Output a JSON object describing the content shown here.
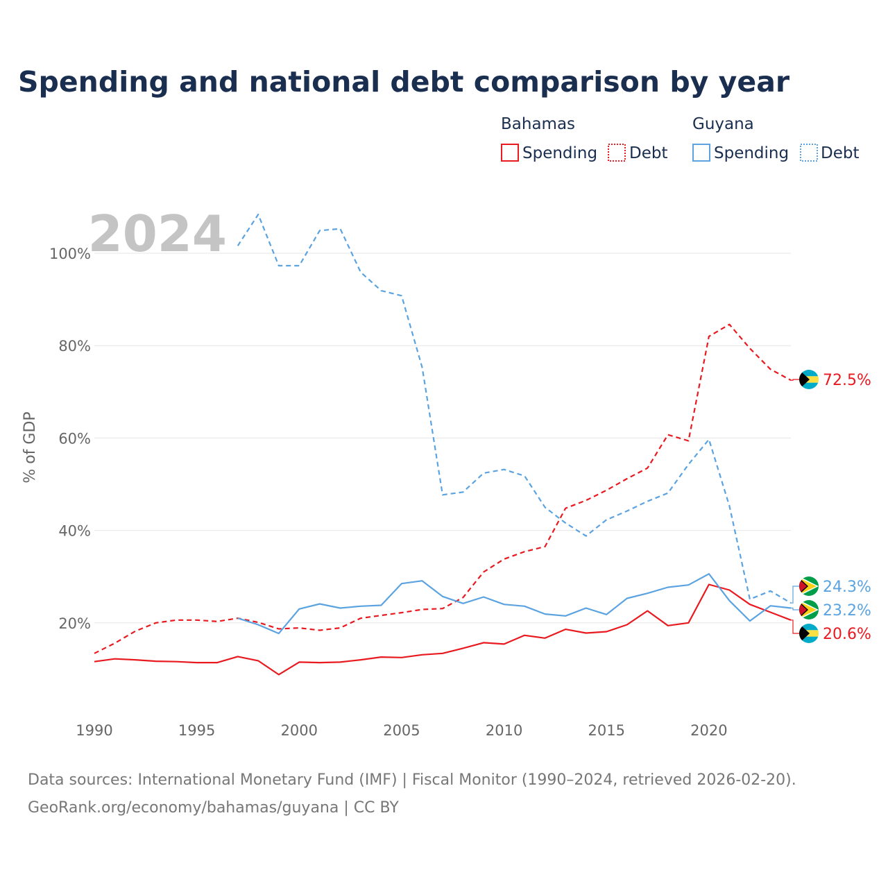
{
  "title": "Spending and national debt comparison by year",
  "legend": {
    "bahamas_label": "Bahamas",
    "guyana_label": "Guyana",
    "spending_label": "Spending",
    "debt_label": "Debt"
  },
  "current_year": "2024",
  "colors": {
    "bahamas": "#e8191f",
    "guyana": "#5ba3e0"
  },
  "footer": {
    "line1": "Data sources: International Monetary Fund (IMF) | Fiscal Monitor (1990–2024, retrieved 2026-02-20).",
    "line2": "GeoRank.org/economy/bahamas/guyana | CC BY"
  },
  "chart_data": {
    "type": "line",
    "title": "Spending and national debt comparison by year",
    "xlabel": "",
    "ylabel": "% of GDP",
    "xlim": [
      1990,
      2024
    ],
    "ylim": [
      0,
      110
    ],
    "x_ticks": [
      1990,
      1995,
      2000,
      2005,
      2010,
      2015,
      2020
    ],
    "y_ticks": [
      20,
      40,
      60,
      80,
      100
    ],
    "y_tick_labels": [
      "20%",
      "40%",
      "60%",
      "80%",
      "100%"
    ],
    "grid": true,
    "series": [
      {
        "name": "Bahamas Spending",
        "country": "Bahamas",
        "style": "solid",
        "color": "#e8191f",
        "end_label": "20.6%",
        "x": [
          1990,
          1991,
          1992,
          1993,
          1994,
          1995,
          1996,
          1997,
          1998,
          1999,
          2000,
          2001,
          2002,
          2003,
          2004,
          2005,
          2006,
          2007,
          2008,
          2009,
          2010,
          2011,
          2012,
          2013,
          2014,
          2015,
          2016,
          2017,
          2018,
          2019,
          2020,
          2021,
          2022,
          2023,
          2024
        ],
        "values": [
          11.6,
          12.2,
          12.0,
          11.7,
          11.6,
          11.4,
          11.4,
          12.7,
          11.8,
          8.8,
          11.5,
          11.4,
          11.5,
          12.0,
          12.6,
          12.5,
          13.1,
          13.4,
          14.5,
          15.7,
          15.4,
          17.3,
          16.7,
          18.6,
          17.8,
          18.1,
          19.6,
          22.6,
          19.4,
          20.0,
          28.3,
          27.1,
          24.0,
          22.3,
          20.6
        ]
      },
      {
        "name": "Bahamas Debt",
        "country": "Bahamas",
        "style": "dashed",
        "color": "#e8191f",
        "end_label": "72.5%",
        "x": [
          1990,
          1991,
          1992,
          1993,
          1994,
          1995,
          1996,
          1997,
          1998,
          1999,
          2000,
          2001,
          2002,
          2003,
          2004,
          2005,
          2006,
          2007,
          2008,
          2009,
          2010,
          2011,
          2012,
          2013,
          2014,
          2015,
          2016,
          2017,
          2018,
          2019,
          2020,
          2021,
          2022,
          2023,
          2024
        ],
        "values": [
          13.4,
          15.6,
          18.2,
          20.0,
          20.6,
          20.6,
          20.3,
          21.0,
          20.1,
          18.7,
          18.9,
          18.4,
          18.9,
          21.0,
          21.6,
          22.2,
          22.9,
          23.1,
          25.5,
          31.0,
          33.8,
          35.4,
          36.5,
          44.8,
          46.5,
          48.7,
          51.2,
          53.5,
          60.7,
          59.4,
          82.0,
          84.6,
          79.4,
          74.9,
          72.5
        ]
      },
      {
        "name": "Guyana Spending",
        "country": "Guyana",
        "style": "solid",
        "color": "#5ba3e0",
        "end_label": "23.2%",
        "x": [
          1997,
          1998,
          1999,
          2000,
          2001,
          2002,
          2003,
          2004,
          2005,
          2006,
          2007,
          2008,
          2009,
          2010,
          2011,
          2012,
          2013,
          2014,
          2015,
          2016,
          2017,
          2018,
          2019,
          2020,
          2021,
          2022,
          2023,
          2024
        ],
        "values": [
          21.0,
          19.6,
          17.7,
          23.0,
          24.1,
          23.2,
          23.6,
          23.8,
          28.5,
          29.1,
          25.7,
          24.2,
          25.6,
          24.0,
          23.6,
          21.9,
          21.5,
          23.2,
          21.8,
          25.3,
          26.4,
          27.7,
          28.2,
          30.6,
          24.8,
          20.4,
          23.7,
          23.2
        ]
      },
      {
        "name": "Guyana Debt",
        "country": "Guyana",
        "style": "dashed",
        "color": "#5ba3e0",
        "end_label": "24.3%",
        "x": [
          1997,
          1998,
          1999,
          2000,
          2001,
          2002,
          2003,
          2004,
          2005,
          2006,
          2007,
          2008,
          2009,
          2010,
          2011,
          2012,
          2013,
          2014,
          2015,
          2016,
          2017,
          2018,
          2019,
          2020,
          2021,
          2022,
          2023,
          2024
        ],
        "values": [
          101.6,
          108.4,
          97.3,
          97.3,
          104.9,
          105.3,
          95.9,
          91.9,
          90.8,
          75.3,
          47.7,
          48.3,
          52.4,
          53.2,
          51.8,
          45.0,
          41.6,
          38.8,
          42.3,
          44.2,
          46.3,
          48.1,
          54.3,
          59.7,
          45.3,
          25.1,
          26.9,
          24.3
        ]
      }
    ]
  }
}
